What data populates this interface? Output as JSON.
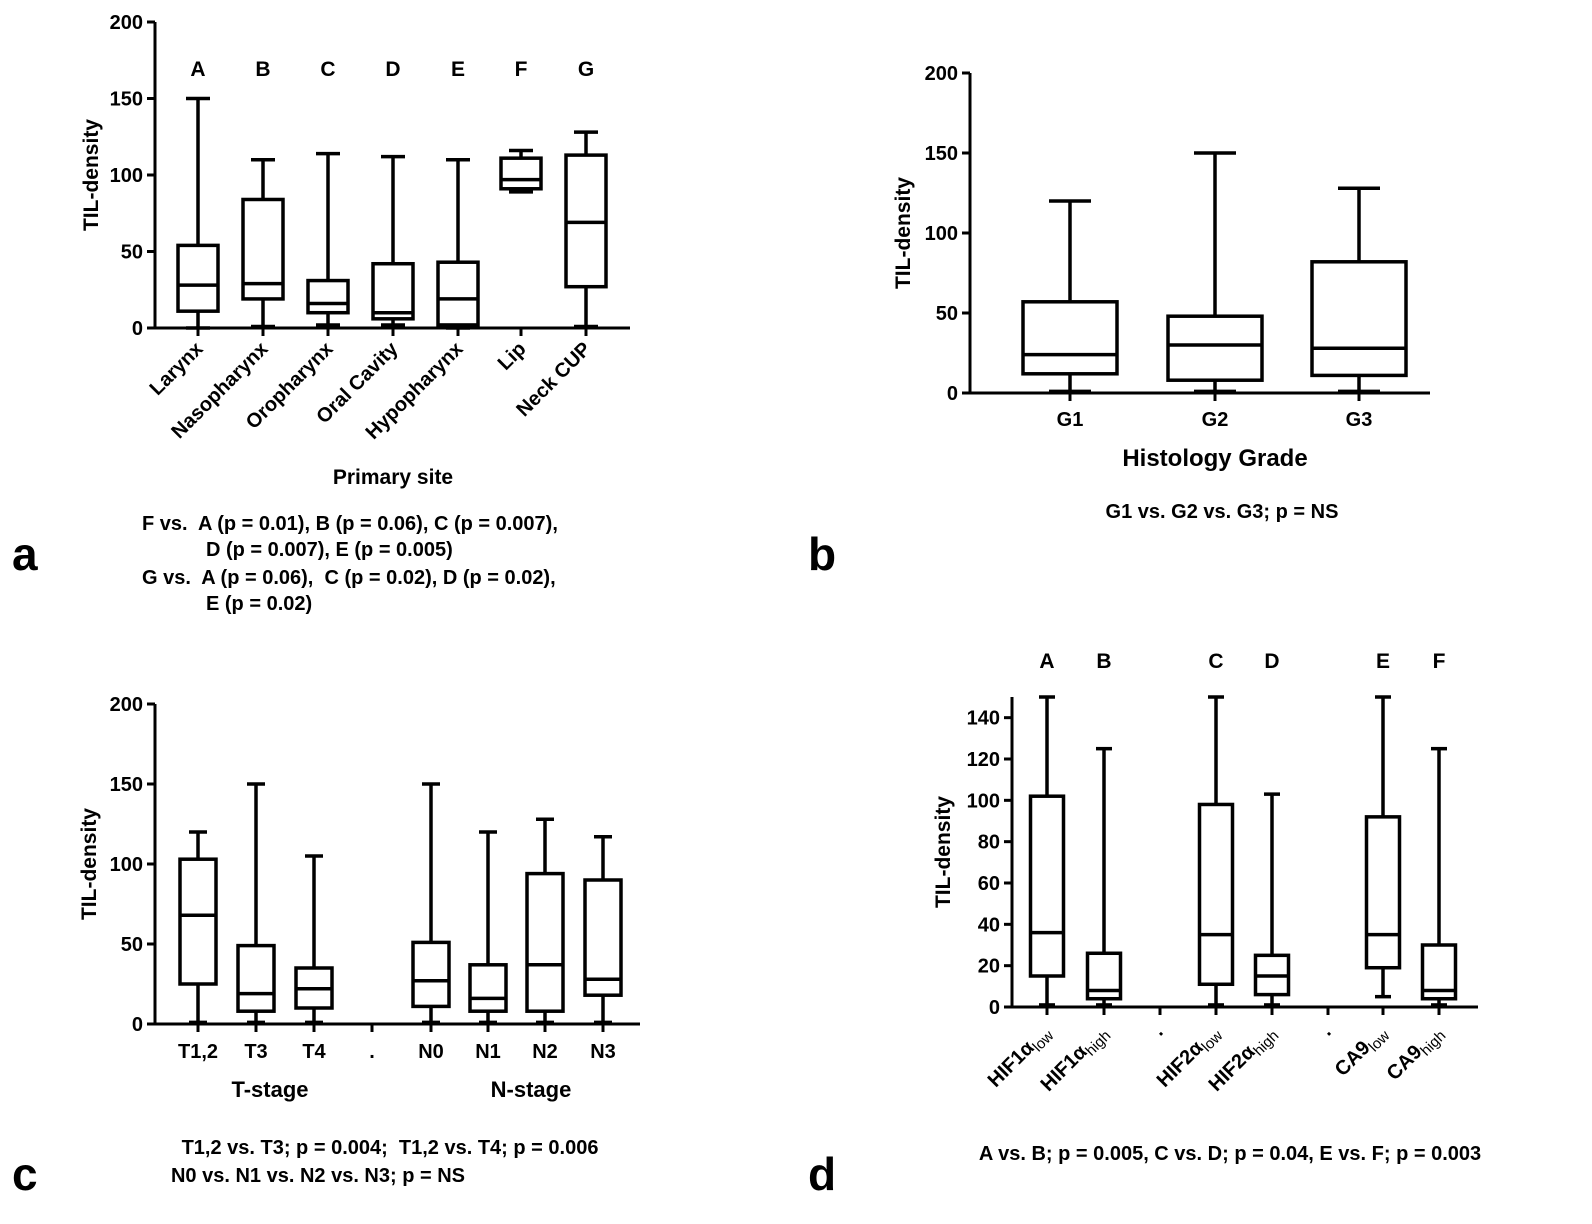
{
  "panels": [
    {
      "id": "a",
      "label": "a",
      "notes": [
        "F vs.  A (p = 0.01), B (p = 0.06), C (p = 0.007),",
        "D (p = 0.007), E (p = 0.005)",
        "G vs.  A (p = 0.06),  C (p = 0.02), D (p = 0.02),",
        "E (p = 0.02)"
      ]
    },
    {
      "id": "b",
      "label": "b",
      "notes": [
        "G1 vs. G2 vs. G3; p = NS"
      ]
    },
    {
      "id": "c",
      "label": "c",
      "notes": [
        "T1,2 vs. T3; p = 0.004;  T1,2 vs. T4; p = 0.006",
        "N0 vs. N1 vs. N2 vs. N3; p = NS"
      ]
    },
    {
      "id": "d",
      "label": "d",
      "notes": [
        "A vs. B; p = 0.005, C vs. D; p = 0.04, E vs. F; p = 0.003"
      ]
    }
  ],
  "chart_data": [
    {
      "panel": "a",
      "type": "box",
      "title": "",
      "xlabel": "Primary site",
      "ylabel": "TIL-density",
      "ylim": [
        0,
        200
      ],
      "yticks": [
        0,
        50,
        100,
        150,
        200
      ],
      "group_labels": [],
      "categories": [
        "Larynx",
        "Nasopharynx",
        "Oropharynx",
        "Oral Cavity",
        "Hypopharynx",
        "Lip",
        "Neck CUP"
      ],
      "letters": [
        "A",
        "B",
        "C",
        "D",
        "E",
        "F",
        "G"
      ],
      "boxes": [
        {
          "min": 0,
          "q1": 11,
          "median": 28,
          "q3": 54,
          "max": 150
        },
        {
          "min": 1,
          "q1": 19,
          "median": 29,
          "q3": 84,
          "max": 110
        },
        {
          "min": 2,
          "q1": 10,
          "median": 16,
          "q3": 31,
          "max": 114
        },
        {
          "min": 2,
          "q1": 6,
          "median": 10,
          "q3": 42,
          "max": 112
        },
        {
          "min": 0,
          "q1": 2,
          "median": 19,
          "q3": 43,
          "max": 110
        },
        {
          "min": 89,
          "q1": 91,
          "median": 97,
          "q3": 111,
          "max": 116
        },
        {
          "min": 1,
          "q1": 27,
          "median": 69,
          "q3": 113,
          "max": 128
        }
      ]
    },
    {
      "panel": "b",
      "type": "box",
      "title": "",
      "xlabel": "Histology Grade",
      "ylabel": "TIL-density",
      "ylim": [
        0,
        200
      ],
      "yticks": [
        0,
        50,
        100,
        150,
        200
      ],
      "group_labels": [],
      "categories": [
        "G1",
        "G2",
        "G3"
      ],
      "letters": [],
      "boxes": [
        {
          "min": 1,
          "q1": 12,
          "median": 24,
          "q3": 57,
          "max": 120
        },
        {
          "min": 1,
          "q1": 8,
          "median": 30,
          "q3": 48,
          "max": 150
        },
        {
          "min": 1,
          "q1": 11,
          "median": 28,
          "q3": 82,
          "max": 128
        }
      ]
    },
    {
      "panel": "c",
      "type": "box",
      "title": "",
      "xlabel": "",
      "ylabel": "TIL-density",
      "ylim": [
        0,
        200
      ],
      "yticks": [
        0,
        50,
        100,
        150,
        200
      ],
      "group_labels": [
        "T-stage",
        "N-stage"
      ],
      "categories": [
        "T1,2",
        "T3",
        "T4",
        ".",
        "N0",
        "N1",
        "N2",
        "N3"
      ],
      "letters": [],
      "boxes": [
        {
          "min": 1,
          "q1": 25,
          "median": 68,
          "q3": 103,
          "max": 120
        },
        {
          "min": 1,
          "q1": 8,
          "median": 19,
          "q3": 49,
          "max": 150
        },
        {
          "min": 1,
          "q1": 10,
          "median": 22,
          "q3": 35,
          "max": 105
        },
        null,
        {
          "min": 1,
          "q1": 11,
          "median": 27,
          "q3": 51,
          "max": 150
        },
        {
          "min": 1,
          "q1": 8,
          "median": 16,
          "q3": 37,
          "max": 120
        },
        {
          "min": 1,
          "q1": 8,
          "median": 37,
          "q3": 94,
          "max": 128
        },
        {
          "min": 1,
          "q1": 18,
          "median": 28,
          "q3": 90,
          "max": 117
        }
      ]
    },
    {
      "panel": "d",
      "type": "box",
      "title": "",
      "xlabel": "",
      "ylabel": "TIL-density",
      "ylim": [
        0,
        150
      ],
      "yticks": [
        0,
        20,
        40,
        60,
        80,
        100,
        120,
        140
      ],
      "group_labels": [],
      "categories": [
        "HIF1α_low",
        "HIF1α_high",
        ".",
        "HIF2α_low",
        "HIF2α_high",
        ".",
        "CA9_low",
        "CA9_high"
      ],
      "tick_text": [
        {
          "main": "HIF1α",
          "sub": "low"
        },
        {
          "main": "HIF1α",
          "sub": "high"
        },
        {
          "main": ".",
          "sub": ""
        },
        {
          "main": "HIF2α",
          "sub": "low"
        },
        {
          "main": "HIF2α",
          "sub": "high"
        },
        {
          "main": ".",
          "sub": ""
        },
        {
          "main": "CA9",
          "sub": "low"
        },
        {
          "main": "CA9",
          "sub": "high"
        }
      ],
      "letters": [
        "A",
        "B",
        "",
        "C",
        "D",
        "",
        "E",
        "F"
      ],
      "boxes": [
        {
          "min": 1,
          "q1": 15,
          "median": 36,
          "q3": 102,
          "max": 150
        },
        {
          "min": 1,
          "q1": 4,
          "median": 8,
          "q3": 26,
          "max": 125
        },
        null,
        {
          "min": 1,
          "q1": 11,
          "median": 35,
          "q3": 98,
          "max": 150
        },
        {
          "min": 1,
          "q1": 6,
          "median": 15,
          "q3": 25,
          "max": 103
        },
        null,
        {
          "min": 5,
          "q1": 19,
          "median": 35,
          "q3": 92,
          "max": 150
        },
        {
          "min": 1,
          "q1": 4,
          "median": 8,
          "q3": 30,
          "max": 125
        }
      ]
    }
  ]
}
